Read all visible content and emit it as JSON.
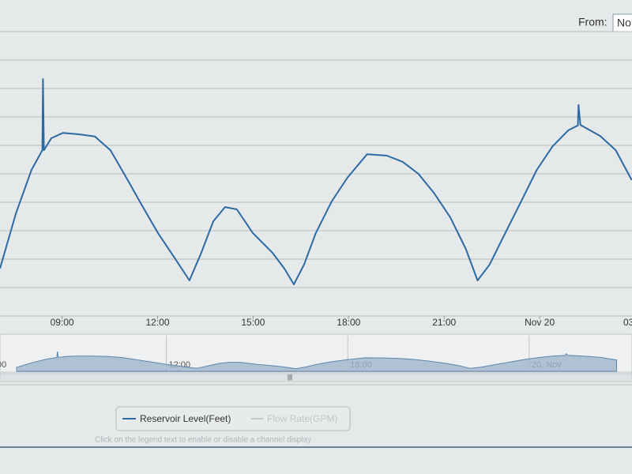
{
  "from_label": "From:",
  "from_value": "No",
  "chart_data": {
    "type": "line",
    "x": [
      7.05,
      7.55,
      8.04,
      8.38,
      8.4,
      8.43,
      8.66,
      9.03,
      9.53,
      10.03,
      10.52,
      11.02,
      11.51,
      12.01,
      12.51,
      13.0,
      13.37,
      13.75,
      14.12,
      14.49,
      14.99,
      15.61,
      15.98,
      16.28,
      16.6,
      16.97,
      17.47,
      17.96,
      18.58,
      19.2,
      19.7,
      20.19,
      20.69,
      21.19,
      21.68,
      22.05,
      22.43,
      22.92,
      23.42,
      23.91,
      24.41,
      24.9,
      25.2,
      25.22,
      25.28,
      25.9,
      26.39,
      26.89
    ],
    "series": [
      {
        "name": "Reservoir Level(Feet)",
        "color": "#2c6aa3",
        "values": [
          1.67,
          3.61,
          5.14,
          5.83,
          8.33,
          5.83,
          6.25,
          6.44,
          6.39,
          6.31,
          5.83,
          4.86,
          3.89,
          2.92,
          2.08,
          1.25,
          2.22,
          3.33,
          3.83,
          3.75,
          2.92,
          2.22,
          1.67,
          1.11,
          1.81,
          2.92,
          4.03,
          4.86,
          5.69,
          5.64,
          5.42,
          5.0,
          4.31,
          3.47,
          2.36,
          1.25,
          1.81,
          2.92,
          4.03,
          5.14,
          5.97,
          6.53,
          6.7,
          7.42,
          6.72,
          6.33,
          5.83,
          4.78
        ]
      }
    ],
    "legend_disabled": "Flow Rate(GPM)",
    "legend_hint": "Click on the legend text to enable or disable a channel display",
    "xlim": [
      7.05,
      26.9
    ],
    "ylim": [
      0,
      10
    ],
    "xticks": [
      {
        "value": 9,
        "label": "09:00"
      },
      {
        "value": 12,
        "label": "12:00"
      },
      {
        "value": 15,
        "label": "15:00"
      },
      {
        "value": 18,
        "label": "18:00"
      },
      {
        "value": 21,
        "label": "21:00"
      },
      {
        "value": 24,
        "label": "Nov 20"
      },
      {
        "value": 27,
        "label": "03:00"
      }
    ],
    "grid": true,
    "navigator_xlim": [
      6.5,
      27.4
    ],
    "navigator_ticks": [
      {
        "value": 6,
        "label": "00"
      },
      {
        "value": 12,
        "label": "12:00"
      },
      {
        "value": 18,
        "label": "18:00"
      },
      {
        "value": 24,
        "label": "20. Nov"
      }
    ]
  }
}
